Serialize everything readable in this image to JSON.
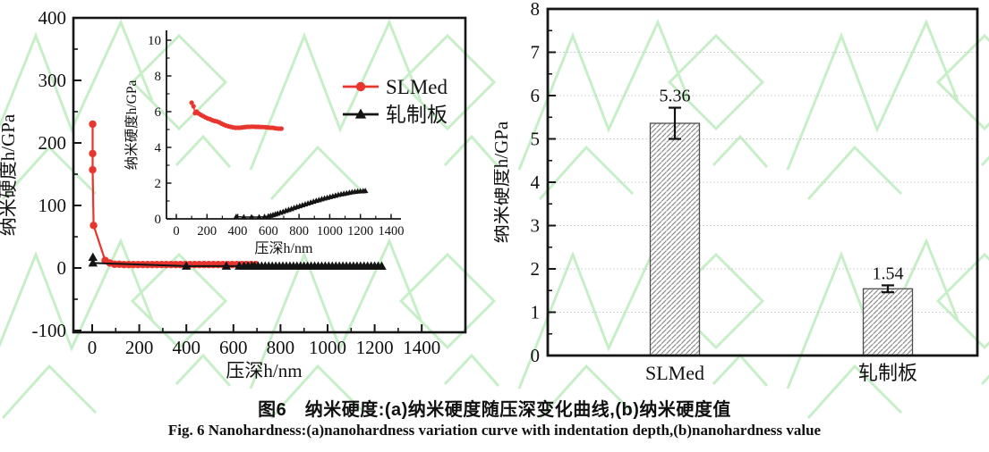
{
  "page": {
    "background": "#ffffff",
    "watermark_color": "#c7efc7"
  },
  "captions": {
    "chinese": "图6　纳米硬度:(a)纳米硬度随压深变化曲线,(b)纳米硬度值",
    "english": "Fig. 6   Nanohardness:(a)nanohardness variation curve with indentation depth,(b)nanohardness value"
  },
  "chart_data": [
    {
      "id": "a",
      "type": "line",
      "xlabel": "压深h/nm",
      "ylabel": "纳米硬度h/GPa",
      "xlim": [
        0,
        1400
      ],
      "ylim": [
        -100,
        400
      ],
      "xticks": [
        0,
        200,
        400,
        600,
        800,
        1000,
        1200,
        1400
      ],
      "yticks": [
        -100,
        0,
        100,
        200,
        300,
        400
      ],
      "grid": false,
      "legend_position": "upper-right-inside",
      "frame_color": "#151515",
      "series": [
        {
          "name": "SLMed",
          "color": "#e8352d",
          "marker": "circle",
          "points": [
            [
              2,
              230
            ],
            [
              2,
              183
            ],
            [
              2,
              157
            ],
            [
              6,
              68
            ],
            [
              55,
              12
            ],
            [
              75,
              8
            ],
            [
              95,
              6
            ],
            [
              115,
              6
            ],
            [
              135,
              5.5
            ],
            [
              155,
              5.5
            ],
            [
              175,
              5.5
            ],
            [
              195,
              5.5
            ],
            [
              215,
              5.5
            ],
            [
              235,
              5.5
            ],
            [
              255,
              5.5
            ],
            [
              275,
              5.5
            ],
            [
              295,
              5.5
            ],
            [
              315,
              5.5
            ],
            [
              335,
              5.5
            ],
            [
              355,
              5.5
            ],
            [
              375,
              5.5
            ],
            [
              395,
              5.5
            ],
            [
              415,
              5.5
            ],
            [
              435,
              5.5
            ],
            [
              455,
              5.5
            ],
            [
              475,
              5.5
            ],
            [
              495,
              5.5
            ],
            [
              515,
              5.5
            ],
            [
              535,
              5.5
            ],
            [
              555,
              5.5
            ],
            [
              575,
              5.5
            ],
            [
              595,
              5.5
            ],
            [
              615,
              5.5
            ],
            [
              635,
              5.5
            ],
            [
              655,
              5.5
            ],
            [
              675,
              5.5
            ],
            [
              695,
              5.5
            ]
          ]
        },
        {
          "name": "轧制板",
          "color": "#141414",
          "marker": "triangle",
          "points": [
            [
              3,
              17
            ],
            [
              3,
              8
            ],
            [
              400,
              3
            ],
            [
              570,
              3
            ],
            [
              625,
              3
            ],
            [
              645,
              3
            ],
            [
              662,
              3
            ],
            [
              678,
              3
            ],
            [
              690,
              2.8
            ],
            [
              705,
              2.8
            ],
            [
              720,
              2.8
            ],
            [
              735,
              2.8
            ],
            [
              750,
              2.8
            ],
            [
              765,
              2.8
            ],
            [
              780,
              2.8
            ],
            [
              795,
              2.8
            ],
            [
              810,
              2.8
            ],
            [
              825,
              2.8
            ],
            [
              840,
              2.8
            ],
            [
              855,
              2.8
            ],
            [
              870,
              2.8
            ],
            [
              885,
              2.8
            ],
            [
              900,
              2.8
            ],
            [
              915,
              2.8
            ],
            [
              930,
              2.8
            ],
            [
              945,
              2.8
            ],
            [
              960,
              2.8
            ],
            [
              975,
              2.8
            ],
            [
              990,
              2.8
            ],
            [
              1005,
              2.8
            ],
            [
              1020,
              2.8
            ],
            [
              1035,
              2.8
            ],
            [
              1050,
              2.8
            ],
            [
              1065,
              2.8
            ],
            [
              1080,
              2.8
            ],
            [
              1095,
              2.8
            ],
            [
              1110,
              2.8
            ],
            [
              1125,
              2.8
            ],
            [
              1140,
              2.8
            ],
            [
              1155,
              2.8
            ],
            [
              1170,
              2.8
            ],
            [
              1185,
              2.8
            ],
            [
              1200,
              2.8
            ],
            [
              1215,
              2.8
            ],
            [
              1230,
              2.8
            ]
          ]
        }
      ],
      "inset": {
        "xlabel": "压深h/nm",
        "ylabel": "纳米硬度h/GPa",
        "xlim": [
          0,
          1400
        ],
        "ylim": [
          0,
          10
        ],
        "xticks": [
          0,
          200,
          400,
          600,
          800,
          1000,
          1200,
          1400
        ],
        "yticks": [
          0,
          2,
          4,
          6,
          8,
          10
        ],
        "series": [
          {
            "name": "SLMed",
            "color": "#e8352d",
            "marker": "circle",
            "points": [
              [
                100,
                6.5
              ],
              [
                112,
                6.3
              ],
              [
                122,
                5.92
              ],
              [
                132,
                6.0
              ],
              [
                145,
                5.9
              ],
              [
                160,
                5.82
              ],
              [
                175,
                5.75
              ],
              [
                190,
                5.68
              ],
              [
                205,
                5.62
              ],
              [
                220,
                5.58
              ],
              [
                235,
                5.52
              ],
              [
                250,
                5.48
              ],
              [
                265,
                5.45
              ],
              [
                280,
                5.4
              ],
              [
                295,
                5.33
              ],
              [
                310,
                5.27
              ],
              [
                325,
                5.22
              ],
              [
                340,
                5.18
              ],
              [
                355,
                5.15
              ],
              [
                370,
                5.12
              ],
              [
                385,
                5.1
              ],
              [
                400,
                5.1
              ],
              [
                415,
                5.1
              ],
              [
                430,
                5.12
              ],
              [
                445,
                5.13
              ],
              [
                460,
                5.15
              ],
              [
                475,
                5.15
              ],
              [
                490,
                5.16
              ],
              [
                505,
                5.16
              ],
              [
                520,
                5.15
              ],
              [
                535,
                5.15
              ],
              [
                550,
                5.14
              ],
              [
                565,
                5.14
              ],
              [
                580,
                5.13
              ],
              [
                595,
                5.12
              ],
              [
                610,
                5.1
              ],
              [
                625,
                5.1
              ],
              [
                640,
                5.08
              ],
              [
                655,
                5.06
              ],
              [
                670,
                5.05
              ],
              [
                685,
                5.05
              ]
            ]
          },
          {
            "name": "轧制板",
            "color": "#141414",
            "marker": "triangle",
            "points": [
              [
                390,
                0.12
              ],
              [
                440,
                0.1
              ],
              [
                490,
                0.1
              ],
              [
                540,
                0.1
              ],
              [
                575,
                0.12
              ],
              [
                600,
                0.15
              ],
              [
                615,
                0.18
              ],
              [
                630,
                0.22
              ],
              [
                645,
                0.26
              ],
              [
                660,
                0.3
              ],
              [
                678,
                0.35
              ],
              [
                696,
                0.4
              ],
              [
                714,
                0.46
              ],
              [
                732,
                0.51
              ],
              [
                750,
                0.56
              ],
              [
                768,
                0.62
              ],
              [
                786,
                0.67
              ],
              [
                804,
                0.72
              ],
              [
                822,
                0.77
              ],
              [
                840,
                0.82
              ],
              [
                858,
                0.87
              ],
              [
                876,
                0.92
              ],
              [
                894,
                0.97
              ],
              [
                912,
                1.02
              ],
              [
                930,
                1.06
              ],
              [
                948,
                1.11
              ],
              [
                966,
                1.15
              ],
              [
                984,
                1.19
              ],
              [
                1002,
                1.23
              ],
              [
                1020,
                1.27
              ],
              [
                1038,
                1.31
              ],
              [
                1056,
                1.35
              ],
              [
                1074,
                1.38
              ],
              [
                1092,
                1.41
              ],
              [
                1110,
                1.44
              ],
              [
                1128,
                1.47
              ],
              [
                1146,
                1.5
              ],
              [
                1164,
                1.52
              ],
              [
                1182,
                1.54
              ],
              [
                1200,
                1.55
              ],
              [
                1218,
                1.56
              ],
              [
                1232,
                1.57
              ]
            ]
          }
        ]
      }
    },
    {
      "id": "b",
      "type": "bar",
      "categories": [
        "SLMed",
        "轧制板"
      ],
      "values": [
        5.36,
        1.54
      ],
      "errors": [
        0.36,
        0.08
      ],
      "value_labels": [
        "5.36",
        "1.54"
      ],
      "ylabel": "纳米硬度h/GPa",
      "ylim": [
        0,
        8
      ],
      "yticks": [
        0,
        1,
        2,
        3,
        4,
        5,
        6,
        7,
        8
      ],
      "grid": "horizontal-dotted",
      "grid_color": "#c4c4c4",
      "bar_style": "diagonal-hatch",
      "hatch_color": "#8d8d8d",
      "bar_edge_color": "#4d4d4d",
      "frame_color": "#151515"
    }
  ]
}
